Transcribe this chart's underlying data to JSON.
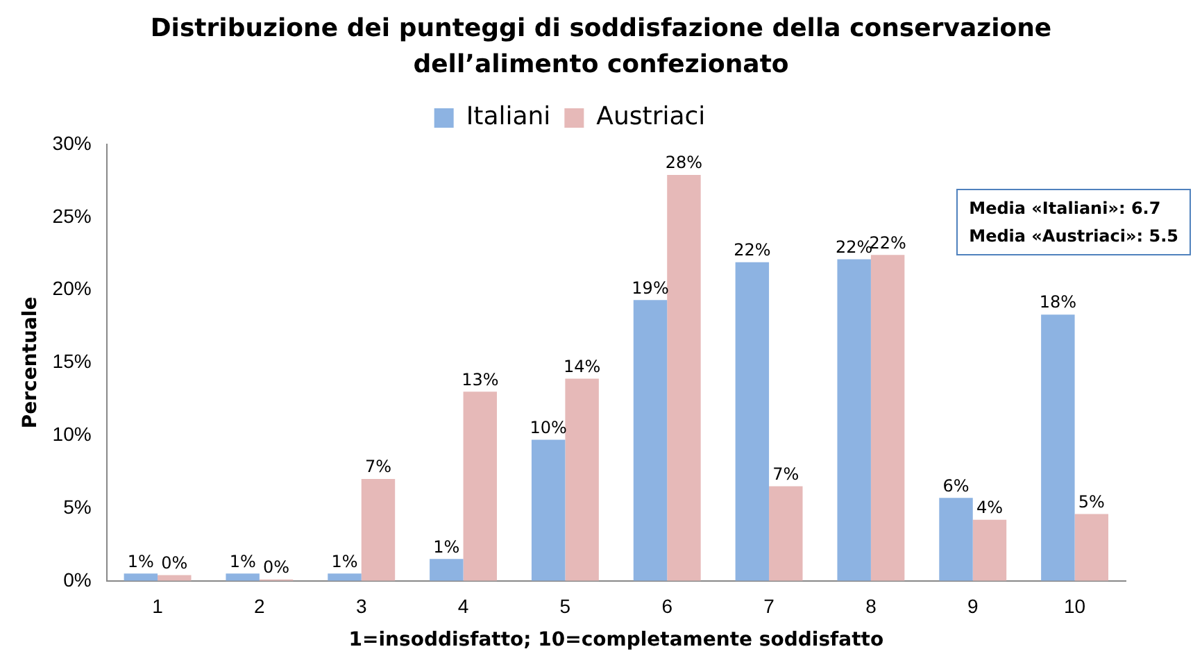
{
  "chart_data": {
    "type": "bar",
    "title": "Distribuzione dei punteggi di soddisfazione della conservazione dell’alimento confezionato",
    "xlabel": "1=insoddisfatto; 10=completamente soddisfatto",
    "ylabel": "Percentuale",
    "categories": [
      "1",
      "2",
      "3",
      "4",
      "5",
      "6",
      "7",
      "8",
      "9",
      "10"
    ],
    "series": [
      {
        "name": "Italiani",
        "color": "#8db3e2",
        "values": [
          0.5,
          0.5,
          0.5,
          1.5,
          9.7,
          19.3,
          21.9,
          22.1,
          5.7,
          18.3
        ],
        "value_labels": [
          "1%",
          "1%",
          "1%",
          "1%",
          "10%",
          "19%",
          "22%",
          "22%",
          "6%",
          "18%"
        ]
      },
      {
        "name": "Austriaci",
        "color": "#e6b9b8",
        "values": [
          0.4,
          0,
          7,
          13,
          13.9,
          27.9,
          6.5,
          22.4,
          4.2,
          4.6
        ],
        "value_labels": [
          "0%",
          "0%",
          "7%",
          "13%",
          "14%",
          "28%",
          "7%",
          "22%",
          "4%",
          "5%"
        ]
      }
    ],
    "ylim": [
      0,
      30
    ],
    "yticks": [
      {
        "value": 0,
        "label": "0%"
      },
      {
        "value": 5,
        "label": "5%"
      },
      {
        "value": 10,
        "label": "10%"
      },
      {
        "value": 15,
        "label": "15%"
      },
      {
        "value": 20,
        "label": "20%"
      },
      {
        "value": 25,
        "label": "25%"
      },
      {
        "value": 30,
        "label": "30%"
      }
    ],
    "grid": false,
    "legend": "top",
    "annotations": [
      "Media «Italiani»: 6.7",
      "Media «Austriaci»: 5.5"
    ]
  }
}
